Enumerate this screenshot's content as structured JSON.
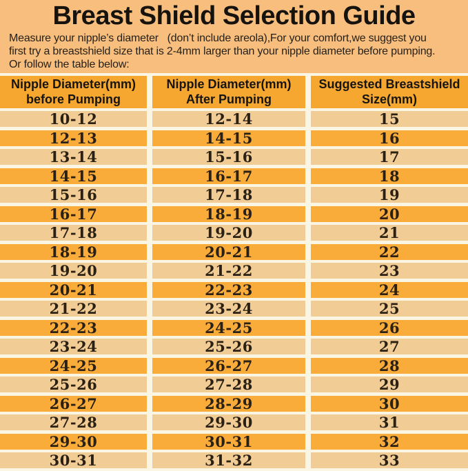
{
  "page": {
    "title": "Breast Shield Selection Guide",
    "intro_lines": [
      "Measure your nipple’s diameter   (don’t include areola),For your comfort,we suggest you",
      "first try a breastshield size that is 2-4mm larger than your nipple diameter before pumping.",
      "Or follow the table below:"
    ]
  },
  "table": {
    "headers": [
      {
        "line1": "Nipple Diameter(mm)",
        "line2": "before Pumping"
      },
      {
        "line1": "Nipple Diameter(mm)",
        "line2": "After Pumping"
      },
      {
        "line1": "Suggested Breastshield",
        "line2": "Size(mm)"
      }
    ],
    "rows": [
      {
        "before": "10-12",
        "after": "12-14",
        "size": "15"
      },
      {
        "before": "12-13",
        "after": "14-15",
        "size": "16"
      },
      {
        "before": "13-14",
        "after": "15-16",
        "size": "17"
      },
      {
        "before": "14-15",
        "after": "16-17",
        "size": "18"
      },
      {
        "before": "15-16",
        "after": "17-18",
        "size": "19"
      },
      {
        "before": "16-17",
        "after": "18-19",
        "size": "20"
      },
      {
        "before": "17-18",
        "after": "19-20",
        "size": "21"
      },
      {
        "before": "18-19",
        "after": "20-21",
        "size": "22"
      },
      {
        "before": "19-20",
        "after": "21-22",
        "size": "23"
      },
      {
        "before": "20-21",
        "after": "22-23",
        "size": "24"
      },
      {
        "before": "21-22",
        "after": "23-24",
        "size": "25"
      },
      {
        "before": "22-23",
        "after": "24-25",
        "size": "26"
      },
      {
        "before": "23-24",
        "after": "25-26",
        "size": "27"
      },
      {
        "before": "24-25",
        "after": "26-27",
        "size": "28"
      },
      {
        "before": "25-26",
        "after": "27-28",
        "size": "29"
      },
      {
        "before": "26-27",
        "after": "28-29",
        "size": "30"
      },
      {
        "before": "27-28",
        "after": "29-30",
        "size": "31"
      },
      {
        "before": "29-30",
        "after": "30-31",
        "size": "32"
      },
      {
        "before": "30-31",
        "after": "31-32",
        "size": "33"
      }
    ]
  },
  "colors": {
    "page_background": "#F8BE7D",
    "header_row": "#F6A72F",
    "row_light": "#F1CD95",
    "row_dark": "#FAAC3A",
    "gap": "#FBF5E4",
    "text": "#1b1712"
  }
}
